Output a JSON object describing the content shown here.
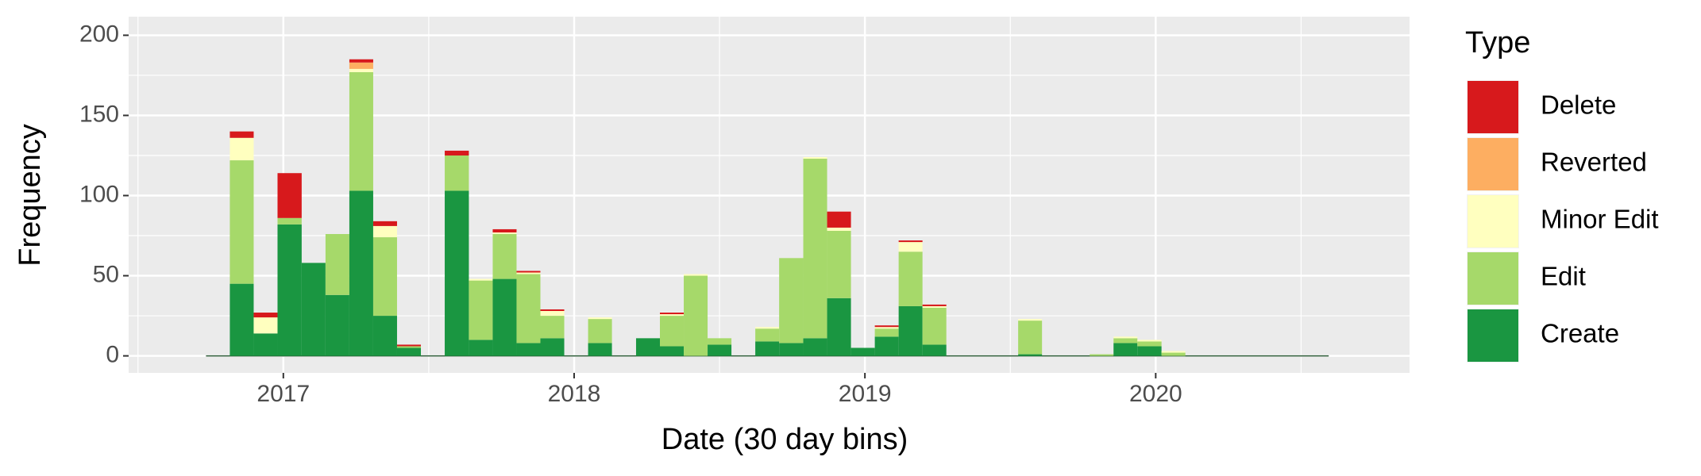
{
  "chart_data": {
    "type": "histogram",
    "x_label": "Date (30 day bins)",
    "y_label": "Frequency",
    "legend_title": "Type",
    "legend_position": "right",
    "bins": [
      2016.734,
      2016.816,
      2016.898,
      2016.98,
      2017.063,
      2017.145,
      2017.227,
      2017.309,
      2017.391,
      2017.473,
      2017.555,
      2017.638,
      2017.72,
      2017.802,
      2017.884,
      2017.966,
      2018.048,
      2018.13,
      2018.213,
      2018.295,
      2018.377,
      2018.459,
      2018.541,
      2018.623,
      2018.705,
      2018.788,
      2018.87,
      2018.952,
      2019.034,
      2019.116,
      2019.198,
      2019.28,
      2019.362,
      2019.445,
      2019.527,
      2019.609,
      2019.691,
      2019.773,
      2019.855,
      2019.937,
      2020.02,
      2020.102,
      2020.184,
      2020.266,
      2020.348,
      2020.43,
      2020.513,
      2020.595
    ],
    "series": [
      {
        "name": "Create",
        "color": "#1a9641",
        "values": [
          0,
          45,
          14,
          82,
          58,
          38,
          103,
          25,
          5,
          0,
          103,
          10,
          48,
          8,
          11,
          0,
          8,
          0,
          11,
          6,
          0,
          7,
          0,
          9,
          8,
          11,
          36,
          5,
          12,
          31,
          7,
          0,
          0,
          0,
          1,
          0,
          0,
          0,
          8,
          6,
          0,
          0,
          0,
          0,
          0,
          0,
          0
        ]
      },
      {
        "name": "Edit",
        "color": "#a6d96a",
        "values": [
          0,
          77,
          0,
          4,
          0,
          38,
          74,
          49,
          1,
          0,
          22,
          37,
          28,
          43,
          14,
          0,
          15,
          0,
          0,
          19,
          50,
          4,
          0,
          8,
          53,
          112,
          42,
          0,
          5,
          34,
          23,
          0,
          0,
          0,
          21,
          0,
          0,
          1,
          3,
          3,
          2,
          0,
          0,
          0,
          0,
          0,
          0
        ]
      },
      {
        "name": "Minor Edit",
        "color": "#ffffbf",
        "values": [
          0,
          14,
          10,
          0,
          0,
          0,
          2,
          7,
          0,
          0,
          0,
          1,
          1,
          1,
          3,
          0,
          1,
          0,
          0,
          1,
          1,
          0,
          0,
          1,
          0,
          1,
          2,
          0,
          1,
          6,
          1,
          0,
          0,
          0,
          1,
          0,
          0,
          0,
          1,
          1,
          1,
          0,
          0,
          0,
          0,
          0,
          0
        ]
      },
      {
        "name": "Reverted",
        "color": "#fdae61",
        "values": [
          0,
          0,
          0,
          0,
          0,
          0,
          4,
          0,
          0,
          0,
          0,
          0,
          0,
          0,
          0,
          0,
          0,
          0,
          0,
          0,
          0,
          0,
          0,
          0,
          0,
          0,
          0,
          0,
          0,
          0,
          0,
          0,
          0,
          0,
          0,
          0,
          0,
          0,
          0,
          0,
          0,
          0,
          0,
          0,
          0,
          0,
          0
        ]
      },
      {
        "name": "Delete",
        "color": "#d7191c",
        "values": [
          0,
          4,
          3,
          28,
          0,
          0,
          2,
          3,
          1,
          0,
          3,
          0,
          2,
          1,
          1,
          0,
          0,
          0,
          0,
          1,
          0,
          0,
          0,
          0,
          0,
          0,
          10,
          0,
          1,
          1,
          1,
          0,
          0,
          0,
          0,
          0,
          0,
          0,
          0,
          0,
          0,
          0,
          0,
          0,
          0,
          0,
          0
        ]
      }
    ],
    "xlim": [
      2016.468,
      2020.873
    ],
    "xticks": [
      2017,
      2018,
      2019,
      2020
    ],
    "ylim": [
      -10.6,
      211.6
    ],
    "yticks": [
      0,
      50,
      100,
      150,
      200
    ],
    "grid": true
  }
}
